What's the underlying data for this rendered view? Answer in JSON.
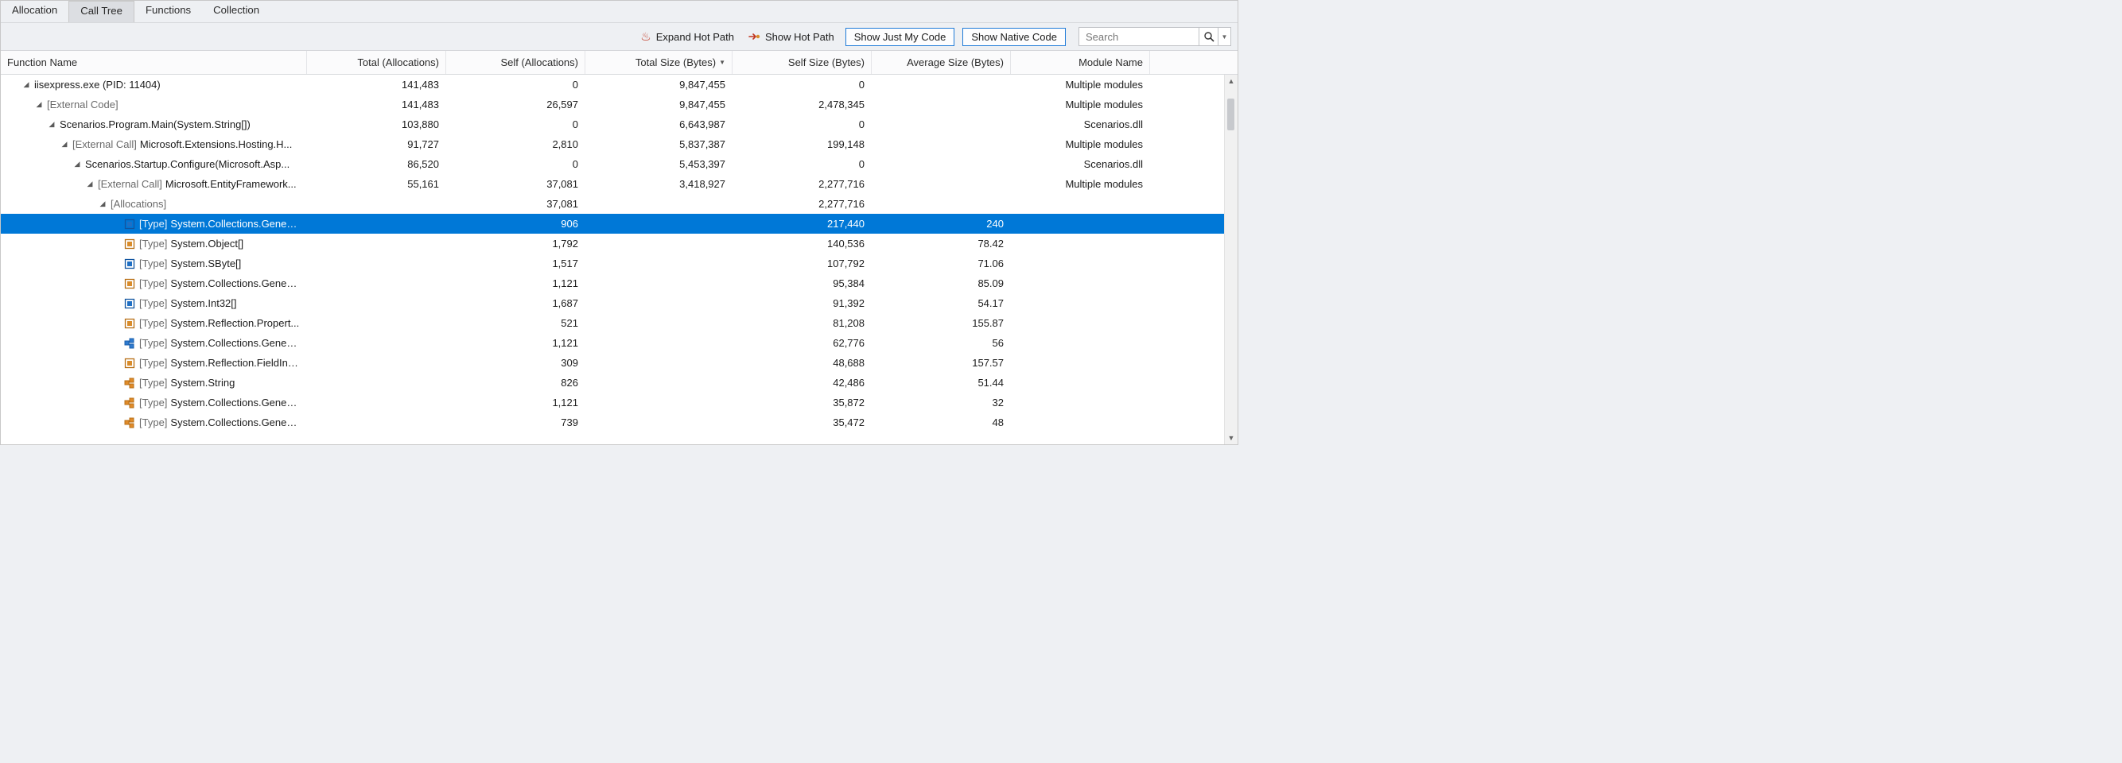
{
  "tabs": {
    "allocation": "Allocation",
    "call_tree": "Call Tree",
    "functions": "Functions",
    "collection": "Collection"
  },
  "toolbar": {
    "expand_hot_path": "Expand Hot Path",
    "show_hot_path": "Show Hot Path",
    "show_just_my_code": "Show Just My Code",
    "show_native_code": "Show Native Code",
    "search_placeholder": "Search"
  },
  "columns": {
    "function_name": "Function Name",
    "total_alloc": "Total (Allocations)",
    "self_alloc": "Self (Allocations)",
    "total_size": "Total Size (Bytes)",
    "self_size": "Self Size (Bytes)",
    "avg_size": "Average Size (Bytes)",
    "module": "Module Name"
  },
  "sorted_column": "total_size",
  "sorted_desc": true,
  "rows": [
    {
      "indent": 0,
      "expanded": true,
      "icon": "none",
      "prefix": "",
      "label": "iisexpress.exe (PID: 11404)",
      "dimPrefix": false,
      "total_alloc": "141,483",
      "self_alloc": "0",
      "total_size": "9,847,455",
      "self_size": "0",
      "avg_size": "",
      "module": "Multiple modules",
      "selected": false
    },
    {
      "indent": 1,
      "expanded": true,
      "icon": "none",
      "prefix": "",
      "label": "[External Code]",
      "dimPrefix": false,
      "dimAll": true,
      "total_alloc": "141,483",
      "self_alloc": "26,597",
      "total_size": "9,847,455",
      "self_size": "2,478,345",
      "avg_size": "",
      "module": "Multiple modules",
      "selected": false
    },
    {
      "indent": 2,
      "expanded": true,
      "icon": "none",
      "prefix": "",
      "label": "Scenarios.Program.Main(System.String[])",
      "total_alloc": "103,880",
      "self_alloc": "0",
      "total_size": "6,643,987",
      "self_size": "0",
      "avg_size": "",
      "module": "Scenarios.dll",
      "selected": false
    },
    {
      "indent": 3,
      "expanded": true,
      "icon": "none",
      "prefix": "[External Call] ",
      "dimPrefix": true,
      "label": "Microsoft.Extensions.Hosting.H...",
      "total_alloc": "91,727",
      "self_alloc": "2,810",
      "total_size": "5,837,387",
      "self_size": "199,148",
      "avg_size": "",
      "module": "Multiple modules",
      "selected": false
    },
    {
      "indent": 4,
      "expanded": true,
      "icon": "none",
      "prefix": "",
      "label": "Scenarios.Startup.Configure(Microsoft.Asp...",
      "total_alloc": "86,520",
      "self_alloc": "0",
      "total_size": "5,453,397",
      "self_size": "0",
      "avg_size": "",
      "module": "Scenarios.dll",
      "selected": false
    },
    {
      "indent": 5,
      "expanded": true,
      "icon": "none",
      "prefix": "[External Call] ",
      "dimPrefix": true,
      "label": "Microsoft.EntityFramework...",
      "total_alloc": "55,161",
      "self_alloc": "37,081",
      "total_size": "3,418,927",
      "self_size": "2,277,716",
      "avg_size": "",
      "module": "Multiple modules",
      "selected": false
    },
    {
      "indent": 6,
      "expanded": true,
      "icon": "none",
      "prefix": "",
      "label": "[Allocations]",
      "dimAll": true,
      "total_alloc": "",
      "self_alloc": "37,081",
      "total_size": "",
      "self_size": "2,277,716",
      "avg_size": "",
      "module": "",
      "selected": false
    },
    {
      "indent": 7,
      "expanded": null,
      "icon": "struct-blue",
      "prefix": "[Type] ",
      "dimPrefix": true,
      "label": "System.Collections.Generi...",
      "total_alloc": "",
      "self_alloc": "906",
      "total_size": "",
      "self_size": "217,440",
      "avg_size": "240",
      "module": "",
      "selected": true
    },
    {
      "indent": 7,
      "expanded": null,
      "icon": "struct-orange",
      "prefix": "[Type] ",
      "dimPrefix": true,
      "label": "System.Object[]",
      "total_alloc": "",
      "self_alloc": "1,792",
      "total_size": "",
      "self_size": "140,536",
      "avg_size": "78.42",
      "module": "",
      "selected": false
    },
    {
      "indent": 7,
      "expanded": null,
      "icon": "struct-blue",
      "prefix": "[Type] ",
      "dimPrefix": true,
      "label": "System.SByte[]",
      "total_alloc": "",
      "self_alloc": "1,517",
      "total_size": "",
      "self_size": "107,792",
      "avg_size": "71.06",
      "module": "",
      "selected": false
    },
    {
      "indent": 7,
      "expanded": null,
      "icon": "struct-orange",
      "prefix": "[Type] ",
      "dimPrefix": true,
      "label": "System.Collections.Generi...",
      "total_alloc": "",
      "self_alloc": "1,121",
      "total_size": "",
      "self_size": "95,384",
      "avg_size": "85.09",
      "module": "",
      "selected": false
    },
    {
      "indent": 7,
      "expanded": null,
      "icon": "struct-blue",
      "prefix": "[Type] ",
      "dimPrefix": true,
      "label": "System.Int32[]",
      "total_alloc": "",
      "self_alloc": "1,687",
      "total_size": "",
      "self_size": "91,392",
      "avg_size": "54.17",
      "module": "",
      "selected": false
    },
    {
      "indent": 7,
      "expanded": null,
      "icon": "struct-orange",
      "prefix": "[Type] ",
      "dimPrefix": true,
      "label": "System.Reflection.Propert...",
      "total_alloc": "",
      "self_alloc": "521",
      "total_size": "",
      "self_size": "81,208",
      "avg_size": "155.87",
      "module": "",
      "selected": false
    },
    {
      "indent": 7,
      "expanded": null,
      "icon": "class-blue",
      "prefix": "[Type] ",
      "dimPrefix": true,
      "label": "System.Collections.Generi...",
      "total_alloc": "",
      "self_alloc": "1,121",
      "total_size": "",
      "self_size": "62,776",
      "avg_size": "56",
      "module": "",
      "selected": false
    },
    {
      "indent": 7,
      "expanded": null,
      "icon": "struct-orange",
      "prefix": "[Type] ",
      "dimPrefix": true,
      "label": "System.Reflection.FieldInfo[]",
      "total_alloc": "",
      "self_alloc": "309",
      "total_size": "",
      "self_size": "48,688",
      "avg_size": "157.57",
      "module": "",
      "selected": false
    },
    {
      "indent": 7,
      "expanded": null,
      "icon": "class-orange",
      "prefix": "[Type] ",
      "dimPrefix": true,
      "label": "System.String",
      "total_alloc": "",
      "self_alloc": "826",
      "total_size": "",
      "self_size": "42,486",
      "avg_size": "51.44",
      "module": "",
      "selected": false
    },
    {
      "indent": 7,
      "expanded": null,
      "icon": "class-orange",
      "prefix": "[Type] ",
      "dimPrefix": true,
      "label": "System.Collections.Generi...",
      "total_alloc": "",
      "self_alloc": "1,121",
      "total_size": "",
      "self_size": "35,872",
      "avg_size": "32",
      "module": "",
      "selected": false
    },
    {
      "indent": 7,
      "expanded": null,
      "icon": "class-orange",
      "prefix": "[Type] ",
      "dimPrefix": true,
      "label": "System.Collections.Generi...",
      "total_alloc": "",
      "self_alloc": "739",
      "total_size": "",
      "self_size": "35,472",
      "avg_size": "48",
      "module": "",
      "selected": false
    }
  ],
  "icons": {
    "struct-blue": {
      "fill": "#1f6fc4",
      "border": "#1255a0"
    },
    "struct-orange": {
      "fill": "#d98c2b",
      "border": "#b86f15"
    },
    "class-blue": {
      "fill": "#2f7bd0",
      "border": "#1a5fad"
    },
    "class-orange": {
      "fill": "#e08b2a",
      "border": "#b86f15"
    }
  }
}
